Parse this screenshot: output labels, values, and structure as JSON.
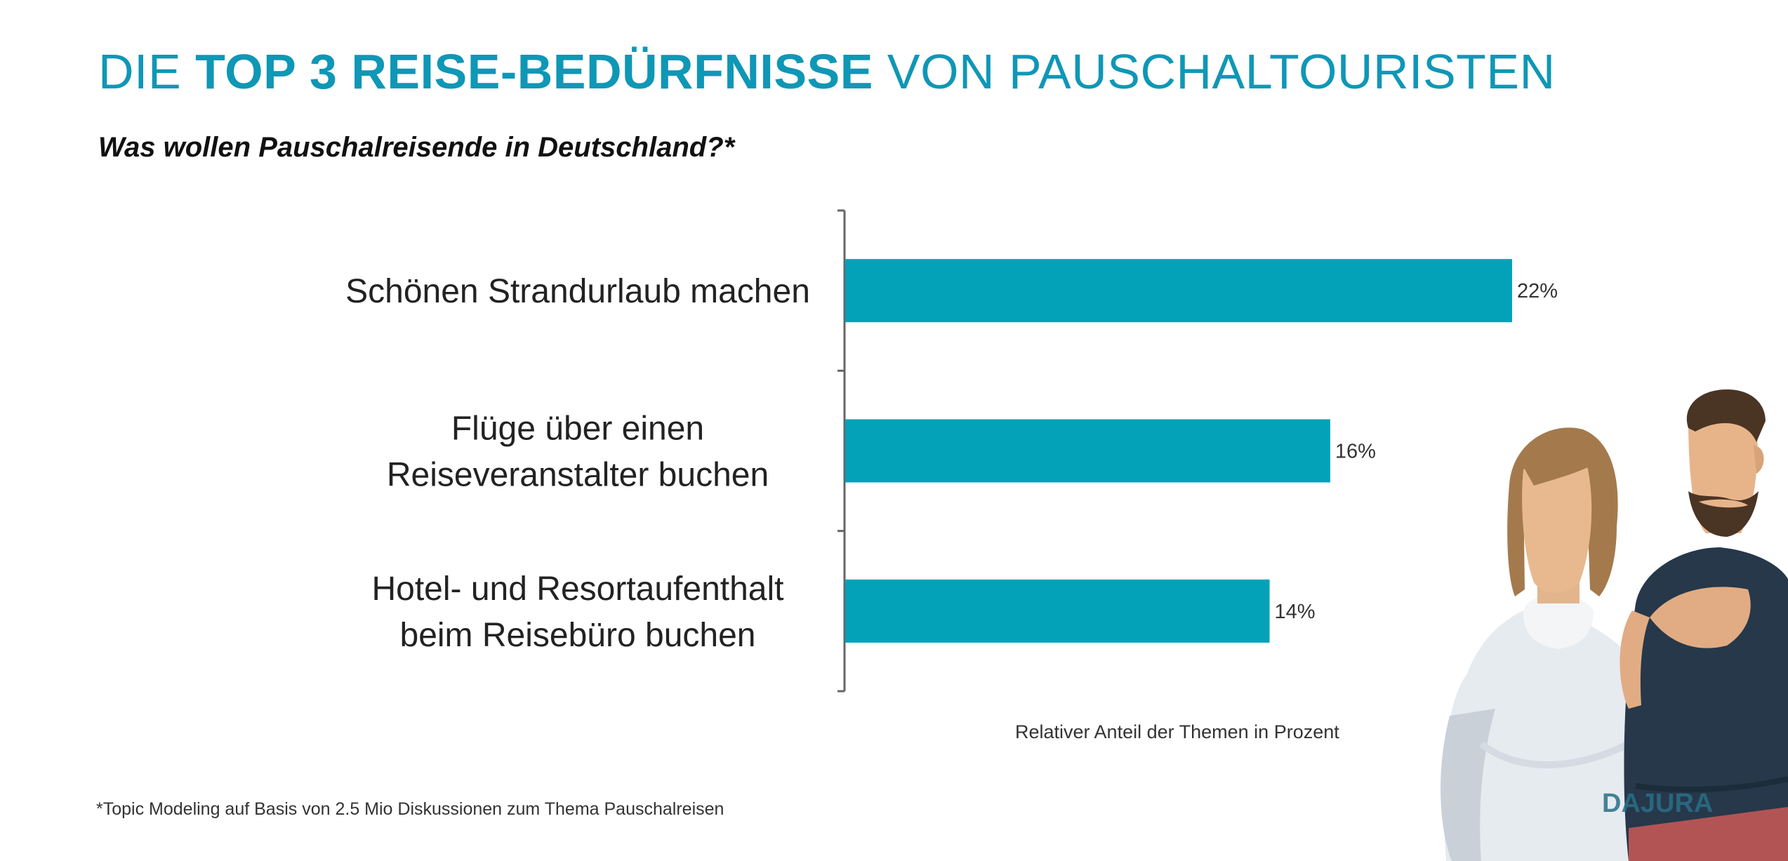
{
  "header": {
    "title_prefix": "DIE ",
    "title_bold": "TOP 3 REISE-BEDÜRFNISSE",
    "title_suffix": " VON PAUSCHALTOURISTEN",
    "subtitle": "Was wollen Pauschalreisende in Deutschland?*"
  },
  "chart_data": {
    "type": "bar",
    "orientation": "horizontal",
    "categories": [
      [
        "Schönen Strandurlaub machen"
      ],
      [
        "Flüge über einen",
        "Reiseveranstalter buchen"
      ],
      [
        "Hotel- und Resortaufenthalt",
        "beim Reisebüro buchen"
      ]
    ],
    "values": [
      22,
      16,
      14
    ],
    "value_labels": [
      "22%",
      "16%",
      "14%"
    ],
    "title": "",
    "xlabel": "Relativer Anteil der Themen in Prozent",
    "ylabel": "",
    "grid": false,
    "colors": {
      "bar": "#04a2b9",
      "axis": "#666666"
    }
  },
  "footnote": "*Topic Modeling auf Basis von 2.5 Mio Diskussionen zum Thema Pauschalreisen",
  "illustration": {
    "brand_text": "DAJURA"
  }
}
